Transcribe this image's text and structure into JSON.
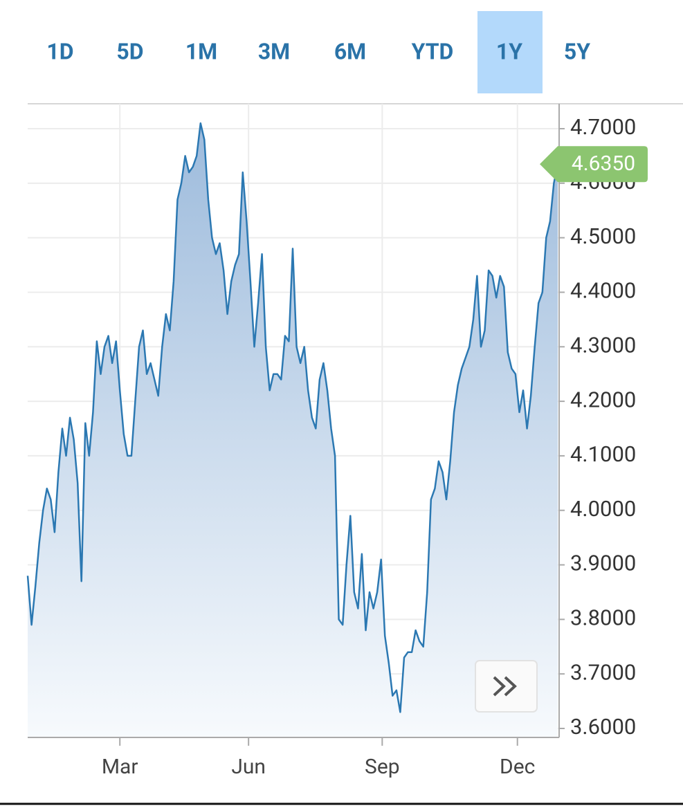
{
  "chart_data": {
    "type": "area",
    "ranges": [
      "1D",
      "5D",
      "1M",
      "3M",
      "6M",
      "YTD",
      "1Y",
      "5Y"
    ],
    "selected_range": 6,
    "color": "#2b78b2",
    "grid": true,
    "values": [
      3.88,
      3.79,
      3.86,
      3.94,
      4.0,
      4.04,
      4.02,
      3.96,
      4.07,
      4.15,
      4.1,
      4.17,
      4.13,
      4.05,
      3.87,
      4.16,
      4.1,
      4.18,
      4.31,
      4.25,
      4.3,
      4.32,
      4.27,
      4.31,
      4.22,
      4.14,
      4.1,
      4.1,
      4.2,
      4.3,
      4.33,
      4.25,
      4.27,
      4.24,
      4.21,
      4.3,
      4.36,
      4.33,
      4.42,
      4.57,
      4.6,
      4.65,
      4.62,
      4.63,
      4.65,
      4.71,
      4.68,
      4.57,
      4.5,
      4.47,
      4.49,
      4.44,
      4.36,
      4.42,
      4.45,
      4.47,
      4.62,
      4.53,
      4.42,
      4.3,
      4.38,
      4.47,
      4.3,
      4.22,
      4.25,
      4.25,
      4.24,
      4.32,
      4.31,
      4.48,
      4.3,
      4.27,
      4.3,
      4.22,
      4.17,
      4.15,
      4.24,
      4.27,
      4.22,
      4.15,
      4.1,
      3.8,
      3.79,
      3.9,
      3.99,
      3.85,
      3.82,
      3.92,
      3.78,
      3.85,
      3.82,
      3.85,
      3.91,
      3.77,
      3.72,
      3.66,
      3.67,
      3.63,
      3.73,
      3.74,
      3.74,
      3.78,
      3.76,
      3.75,
      3.85,
      4.02,
      4.04,
      4.09,
      4.07,
      4.02,
      4.09,
      4.18,
      4.23,
      4.26,
      4.28,
      4.3,
      4.35,
      4.43,
      4.3,
      4.33,
      4.44,
      4.43,
      4.39,
      4.43,
      4.41,
      4.29,
      4.26,
      4.25,
      4.18,
      4.22,
      4.15,
      4.21,
      4.3,
      4.38,
      4.4,
      4.5,
      4.53,
      4.6,
      4.635
    ],
    "price_tag": {
      "value": 4.635,
      "label": "4.6350"
    },
    "xlim": [
      0,
      138
    ],
    "xticks": [
      {
        "value": 24,
        "label": "Mar"
      },
      {
        "value": 57.5,
        "label": "Jun"
      },
      {
        "value": 92.3,
        "label": "Sep"
      },
      {
        "value": 127.5,
        "label": "Dec"
      }
    ],
    "ylim": [
      3.5835,
      4.7457
    ],
    "yticks": [
      {
        "value": 3.6,
        "label": "3.6000"
      },
      {
        "value": 3.7,
        "label": "3.7000"
      },
      {
        "value": 3.8,
        "label": "3.8000"
      },
      {
        "value": 3.9,
        "label": "3.9000"
      },
      {
        "value": 4.0,
        "label": "4.0000"
      },
      {
        "value": 4.1,
        "label": "4.1000"
      },
      {
        "value": 4.2,
        "label": "4.2000"
      },
      {
        "value": 4.3,
        "label": "4.3000"
      },
      {
        "value": 4.4,
        "label": "4.4000"
      },
      {
        "value": 4.5,
        "label": "4.5000"
      },
      {
        "value": 4.6,
        "label": "4.6000"
      },
      {
        "value": 4.7,
        "label": "4.7000"
      }
    ]
  }
}
